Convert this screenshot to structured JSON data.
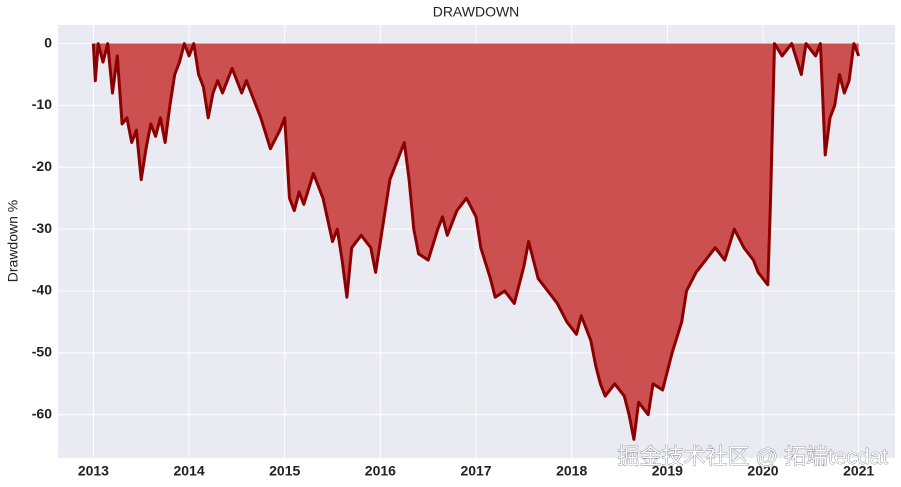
{
  "chart_data": {
    "type": "area",
    "title": "DRAWDOWN",
    "ylabel": "Drawdown %",
    "watermark": "掘金技术社区 @ 拓端tecdat",
    "fill_color": "#cd5050",
    "line_color": "#8b0000",
    "grid": true,
    "xlim": [
      2012.63,
      2021.38
    ],
    "ylim": [
      -67,
      3
    ],
    "xticks": [
      2013,
      2014,
      2015,
      2016,
      2017,
      2018,
      2019,
      2020,
      2021
    ],
    "yticks": [
      0,
      -10,
      -20,
      -30,
      -40,
      -50,
      -60
    ],
    "x": [
      2013.0,
      2013.02,
      2013.05,
      2013.1,
      2013.15,
      2013.2,
      2013.25,
      2013.3,
      2013.35,
      2013.4,
      2013.45,
      2013.5,
      2013.55,
      2013.6,
      2013.65,
      2013.7,
      2013.75,
      2013.8,
      2013.85,
      2013.9,
      2013.95,
      2014.0,
      2014.05,
      2014.1,
      2014.15,
      2014.2,
      2014.25,
      2014.3,
      2014.35,
      2014.45,
      2014.55,
      2014.6,
      2014.75,
      2014.85,
      2014.95,
      2015.0,
      2015.05,
      2015.1,
      2015.15,
      2015.2,
      2015.3,
      2015.4,
      2015.5,
      2015.55,
      2015.6,
      2015.65,
      2015.7,
      2015.8,
      2015.9,
      2015.95,
      2016.0,
      2016.1,
      2016.2,
      2016.25,
      2016.3,
      2016.35,
      2016.4,
      2016.5,
      2016.6,
      2016.65,
      2016.7,
      2016.8,
      2016.9,
      2017.0,
      2017.05,
      2017.15,
      2017.2,
      2017.3,
      2017.4,
      2017.5,
      2017.55,
      2017.65,
      2017.75,
      2017.85,
      2017.95,
      2018.05,
      2018.1,
      2018.2,
      2018.25,
      2018.3,
      2018.35,
      2018.45,
      2018.55,
      2018.6,
      2018.65,
      2018.7,
      2018.8,
      2018.85,
      2018.95,
      2019.05,
      2019.15,
      2019.2,
      2019.3,
      2019.4,
      2019.5,
      2019.6,
      2019.7,
      2019.8,
      2019.9,
      2019.95,
      2020.05,
      2020.08,
      2020.12,
      2020.2,
      2020.3,
      2020.4,
      2020.45,
      2020.55,
      2020.6,
      2020.65,
      2020.7,
      2020.75,
      2020.8,
      2020.85,
      2020.9,
      2020.95,
      2021.0
    ],
    "values": [
      0,
      -6,
      0,
      -3,
      0,
      -8,
      -2,
      -13,
      -12,
      -16,
      -14,
      -22,
      -17,
      -13,
      -15,
      -12,
      -16,
      -10,
      -5,
      -3,
      0,
      -2,
      0,
      -5,
      -7,
      -12,
      -8,
      -6,
      -8,
      -4,
      -8,
      -6,
      -12,
      -17,
      -14,
      -12,
      -25,
      -27,
      -24,
      -26,
      -21,
      -25,
      -32,
      -30,
      -35,
      -41,
      -33,
      -31,
      -33,
      -37,
      -32,
      -22,
      -18,
      -16,
      -22,
      -30,
      -34,
      -35,
      -30,
      -28,
      -31,
      -27,
      -25,
      -28,
      -33,
      -38,
      -41,
      -40,
      -42,
      -36,
      -32,
      -38,
      -40,
      -42,
      -45,
      -47,
      -44,
      -48,
      -52,
      -55,
      -57,
      -55,
      -57,
      -60,
      -64,
      -58,
      -60,
      -55,
      -56,
      -50,
      -45,
      -40,
      -37,
      -35,
      -33,
      -35,
      -30,
      -33,
      -35,
      -37,
      -39,
      -25,
      0,
      -2,
      0,
      -5,
      0,
      -2,
      0,
      -18,
      -12,
      -10,
      -5,
      -8,
      -6,
      0,
      -2
    ]
  }
}
